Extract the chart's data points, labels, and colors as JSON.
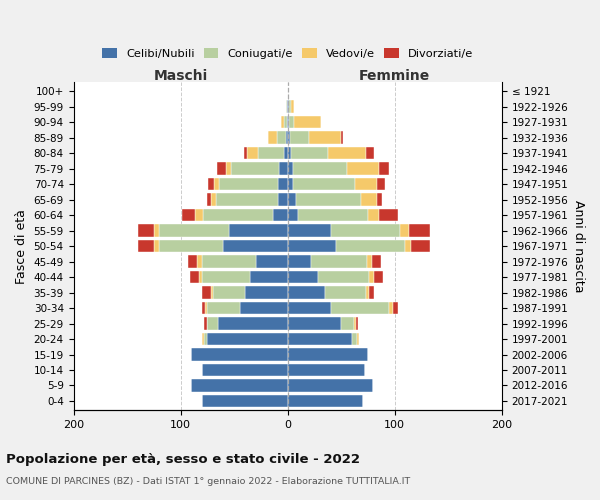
{
  "age_groups": [
    "0-4",
    "5-9",
    "10-14",
    "15-19",
    "20-24",
    "25-29",
    "30-34",
    "35-39",
    "40-44",
    "45-49",
    "50-54",
    "55-59",
    "60-64",
    "65-69",
    "70-74",
    "75-79",
    "80-84",
    "85-89",
    "90-94",
    "95-99",
    "100+"
  ],
  "birth_years": [
    "2017-2021",
    "2012-2016",
    "2007-2011",
    "2002-2006",
    "1997-2001",
    "1992-1996",
    "1987-1991",
    "1982-1986",
    "1977-1981",
    "1972-1976",
    "1967-1971",
    "1962-1966",
    "1957-1961",
    "1952-1956",
    "1947-1951",
    "1942-1946",
    "1937-1941",
    "1932-1936",
    "1927-1931",
    "1922-1926",
    "≤ 1921"
  ],
  "male_celibi": [
    80,
    90,
    80,
    90,
    75,
    65,
    45,
    40,
    35,
    30,
    60,
    55,
    14,
    9,
    9,
    8,
    3,
    2,
    1,
    1,
    0
  ],
  "male_coniugati": [
    0,
    0,
    0,
    0,
    3,
    10,
    30,
    30,
    45,
    50,
    60,
    65,
    65,
    58,
    55,
    45,
    25,
    8,
    2,
    1,
    0
  ],
  "male_vedovi": [
    0,
    0,
    0,
    0,
    2,
    0,
    2,
    2,
    3,
    5,
    5,
    5,
    8,
    5,
    5,
    5,
    10,
    8,
    3,
    0,
    0
  ],
  "male_divorziati": [
    0,
    0,
    0,
    0,
    0,
    3,
    3,
    8,
    8,
    8,
    15,
    15,
    12,
    3,
    5,
    8,
    3,
    0,
    0,
    0,
    0
  ],
  "female_nubili": [
    70,
    80,
    72,
    75,
    60,
    50,
    40,
    35,
    28,
    22,
    45,
    40,
    10,
    8,
    5,
    5,
    3,
    2,
    1,
    1,
    0
  ],
  "female_coniugate": [
    0,
    0,
    0,
    0,
    5,
    12,
    55,
    38,
    48,
    52,
    65,
    65,
    65,
    60,
    58,
    50,
    35,
    18,
    5,
    2,
    0
  ],
  "female_vedove": [
    0,
    0,
    0,
    0,
    2,
    2,
    3,
    3,
    5,
    5,
    5,
    8,
    10,
    15,
    20,
    30,
    35,
    30,
    25,
    3,
    0
  ],
  "female_divorziate": [
    0,
    0,
    0,
    0,
    0,
    2,
    5,
    5,
    8,
    8,
    18,
    20,
    18,
    5,
    8,
    10,
    8,
    2,
    0,
    0,
    0
  ],
  "colors": {
    "celibi_nubili": "#4472a8",
    "coniugati": "#b8cfa0",
    "vedovi": "#f5c96a",
    "divorziati": "#c8372d"
  },
  "xlim": 200,
  "xlabel_left": "Maschi",
  "xlabel_right": "Femmine",
  "ylabel_left": "Fasce di età",
  "ylabel_right": "Anni di nascita",
  "title": "Popolazione per età, sesso e stato civile - 2022",
  "subtitle": "COMUNE DI PARCINES (BZ) - Dati ISTAT 1° gennaio 2022 - Elaborazione TUTTITALIA.IT",
  "legend_labels": [
    "Celibi/Nubili",
    "Coniugati/e",
    "Vedovi/e",
    "Divorziati/e"
  ],
  "background_color": "#f0f0f0",
  "plot_bg_color": "#ffffff"
}
